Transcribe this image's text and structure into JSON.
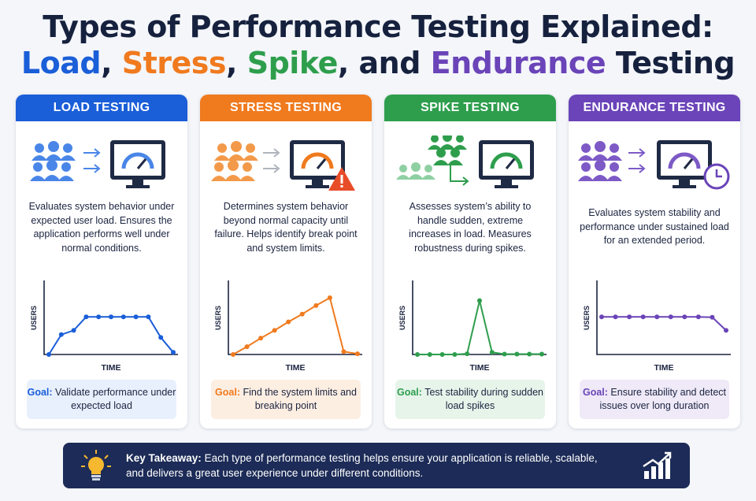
{
  "title": {
    "line1": "Types of Performance Testing Explained:",
    "line2": {
      "a": "Load",
      "sep1": ", ",
      "b": "Stress",
      "sep2": ", ",
      "c": "Spike",
      "sep3": ", and ",
      "d": "Endurance",
      "e": " Testing"
    }
  },
  "colors": {
    "load": "#1a5ed8",
    "stress": "#f07a1e",
    "spike": "#2e9e4d",
    "endurance": "#6a44b8",
    "navy": "#1c2b57"
  },
  "cards": [
    {
      "heading": "LOAD TESTING",
      "description": "Evaluates system behavior under expected user load. Ensures the application performs well under normal conditions.",
      "goal_label": "Goal:",
      "goal_text": "Validate performance under expected load",
      "icons": [
        "users-group-icon",
        "arrows-icon",
        "monitor-gauge-icon"
      ],
      "chart": {
        "ylabel": "USERS",
        "xlabel": "TIME"
      }
    },
    {
      "heading": "STRESS TESTING",
      "description": "Determines system behavior beyond normal capacity until failure. Helps identify break point and system limits.",
      "goal_label": "Goal:",
      "goal_text": "Find the system limits and breaking point",
      "icons": [
        "users-group-icon",
        "arrows-icon",
        "monitor-gauge-icon",
        "warning-icon"
      ],
      "chart": {
        "ylabel": "USERS",
        "xlabel": "TIME"
      }
    },
    {
      "heading": "SPIKE TESTING",
      "description": "Assesses system’s ability to handle sudden, extreme increases in load. Measures robustness during spikes.",
      "goal_label": "Goal:",
      "goal_text": "Test stability during sudden load spikes",
      "icons": [
        "users-group-icon",
        "arrow-icon",
        "monitor-gauge-icon"
      ],
      "chart": {
        "ylabel": "USERS",
        "xlabel": "TIME"
      }
    },
    {
      "heading": "ENDURANCE TESTING",
      "description": "Evaluates system stability and performance under sustained load for an extended period.",
      "goal_label": "Goal:",
      "goal_text": "Ensure stability and detect issues over long duration",
      "icons": [
        "users-group-icon",
        "arrows-icon",
        "monitor-gauge-icon",
        "clock-icon"
      ],
      "chart": {
        "ylabel": "USERS",
        "xlabel": "TIME"
      }
    }
  ],
  "takeaway": {
    "label": "Key Takeaway:",
    "text": "Each type of performance testing helps ensure your application is reliable, scalable, and delivers a great user experience under different conditions.",
    "icons": [
      "lightbulb-icon",
      "growth-chart-icon"
    ]
  },
  "chart_data": [
    {
      "type": "line",
      "name": "load",
      "xlabel": "TIME",
      "ylabel": "USERS",
      "x": [
        0,
        1,
        2,
        3,
        4,
        5,
        6,
        7,
        8,
        9,
        10
      ],
      "y": [
        0,
        2.8,
        3.4,
        5.3,
        5.3,
        5.3,
        5.3,
        5.3,
        5.3,
        2.4,
        0.3
      ],
      "ylim": [
        0,
        10
      ]
    },
    {
      "type": "line",
      "name": "stress",
      "xlabel": "TIME",
      "ylabel": "USERS",
      "x": [
        0,
        1,
        2,
        3,
        4,
        5,
        6,
        7,
        8,
        9
      ],
      "y": [
        0,
        1.1,
        2.3,
        3.4,
        4.6,
        5.7,
        6.9,
        8.0,
        0.4,
        0.1
      ],
      "ylim": [
        0,
        10
      ]
    },
    {
      "type": "line",
      "name": "spike",
      "xlabel": "TIME",
      "ylabel": "USERS",
      "x": [
        0,
        1,
        2,
        3,
        4,
        5,
        6,
        7,
        8,
        9,
        10
      ],
      "y": [
        0,
        0,
        0,
        0,
        0.1,
        7.6,
        0.3,
        0.05,
        0.05,
        0.05,
        0.05
      ],
      "ylim": [
        0,
        10
      ]
    },
    {
      "type": "line",
      "name": "endurance",
      "xlabel": "TIME",
      "ylabel": "USERS",
      "x": [
        0,
        1,
        2,
        3,
        4,
        5,
        6,
        7,
        8,
        9
      ],
      "y": [
        5.3,
        5.3,
        5.3,
        5.3,
        5.3,
        5.3,
        5.3,
        5.3,
        5.25,
        3.4
      ],
      "ylim": [
        0,
        10
      ]
    }
  ]
}
